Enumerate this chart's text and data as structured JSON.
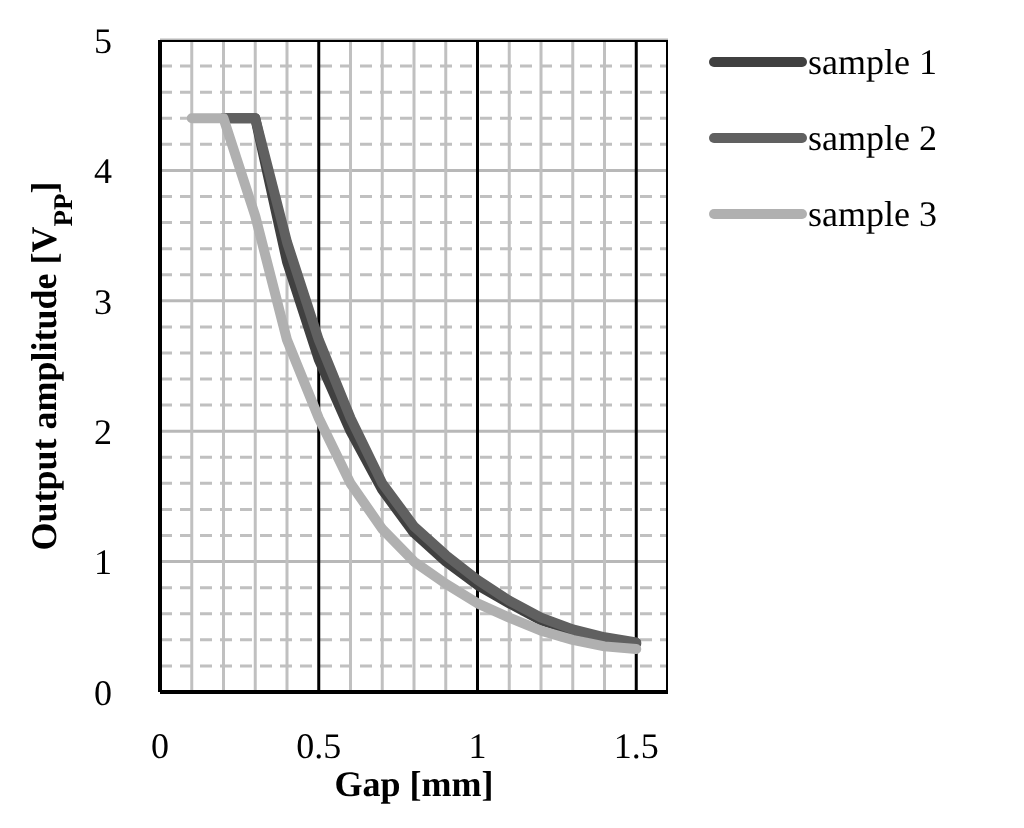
{
  "chart_data": {
    "type": "line",
    "xlabel": "Gap [mm]",
    "ylabel": "Output  amplitude [V$_{PP}$]",
    "xlim": [
      0,
      1.6
    ],
    "xticks": [
      0,
      0.5,
      1,
      1.5
    ],
    "ylim": [
      0,
      5
    ],
    "yticks": [
      0,
      1,
      2,
      3,
      4,
      5
    ],
    "grid": true,
    "legend": "top right",
    "marker": "none",
    "line_style": "solid",
    "series": [
      {
        "name": "sample 1",
        "color": "#404040",
        "x": [
          0.2,
          0.3,
          0.4,
          0.5,
          0.6,
          0.7,
          0.8,
          0.9,
          1.0,
          1.1,
          1.2,
          1.3,
          1.4,
          1.5
        ],
        "values": [
          4.4,
          4.4,
          3.3,
          2.55,
          2.0,
          1.55,
          1.22,
          1.0,
          0.82,
          0.68,
          0.55,
          0.47,
          0.4,
          0.37
        ]
      },
      {
        "name": "sample 2",
        "color": "#606060",
        "x": [
          0.2,
          0.3,
          0.4,
          0.5,
          0.6,
          0.7,
          0.8,
          0.9,
          1.0,
          1.1,
          1.2,
          1.3,
          1.4,
          1.5
        ],
        "values": [
          4.4,
          4.4,
          3.45,
          2.7,
          2.1,
          1.6,
          1.27,
          1.05,
          0.86,
          0.7,
          0.57,
          0.48,
          0.42,
          0.38
        ]
      },
      {
        "name": "sample 3",
        "color": "#b0b0b0",
        "x": [
          0.1,
          0.2,
          0.3,
          0.4,
          0.5,
          0.6,
          0.7,
          0.8,
          0.9,
          1.0,
          1.1,
          1.2,
          1.3,
          1.4,
          1.5
        ],
        "values": [
          4.4,
          4.4,
          3.65,
          2.7,
          2.1,
          1.6,
          1.25,
          1.0,
          0.83,
          0.68,
          0.57,
          0.47,
          0.4,
          0.35,
          0.33
        ]
      }
    ]
  }
}
